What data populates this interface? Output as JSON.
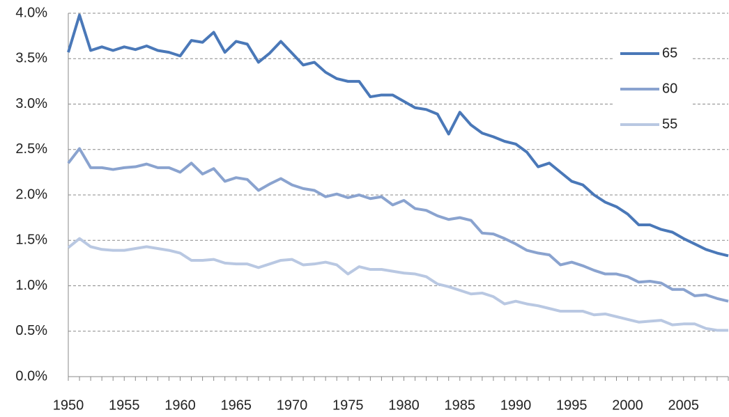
{
  "chart_data": {
    "type": "line",
    "x": [
      1950,
      1951,
      1952,
      1953,
      1954,
      1955,
      1956,
      1957,
      1958,
      1959,
      1960,
      1961,
      1962,
      1963,
      1964,
      1965,
      1966,
      1967,
      1968,
      1969,
      1970,
      1971,
      1972,
      1973,
      1974,
      1975,
      1976,
      1977,
      1978,
      1979,
      1980,
      1981,
      1982,
      1983,
      1984,
      1985,
      1986,
      1987,
      1988,
      1989,
      1990,
      1991,
      1992,
      1993,
      1994,
      1995,
      1996,
      1997,
      1998,
      1999,
      2000,
      2001,
      2002,
      2003,
      2004,
      2005,
      2006,
      2007,
      2008,
      2009
    ],
    "series": [
      {
        "name": "65",
        "color": "#4a78b8",
        "values": [
          3.57,
          3.98,
          3.59,
          3.63,
          3.59,
          3.63,
          3.6,
          3.64,
          3.59,
          3.57,
          3.53,
          3.7,
          3.68,
          3.79,
          3.57,
          3.69,
          3.66,
          3.46,
          3.56,
          3.69,
          3.56,
          3.43,
          3.46,
          3.35,
          3.28,
          3.25,
          3.25,
          3.08,
          3.1,
          3.1,
          3.03,
          2.96,
          2.94,
          2.89,
          2.67,
          2.91,
          2.77,
          2.68,
          2.64,
          2.59,
          2.56,
          2.47,
          2.31,
          2.35,
          2.25,
          2.15,
          2.11,
          2.0,
          1.92,
          1.87,
          1.79,
          1.67,
          1.67,
          1.62,
          1.59,
          1.52,
          1.46,
          1.4,
          1.36,
          1.33
        ]
      },
      {
        "name": "60",
        "color": "#8aa3cf",
        "values": [
          2.35,
          2.51,
          2.3,
          2.3,
          2.28,
          2.3,
          2.31,
          2.34,
          2.3,
          2.3,
          2.25,
          2.35,
          2.23,
          2.29,
          2.15,
          2.19,
          2.17,
          2.05,
          2.12,
          2.18,
          2.11,
          2.07,
          2.05,
          1.98,
          2.01,
          1.97,
          2.0,
          1.96,
          1.98,
          1.89,
          1.94,
          1.85,
          1.83,
          1.77,
          1.73,
          1.75,
          1.72,
          1.58,
          1.57,
          1.52,
          1.46,
          1.39,
          1.36,
          1.34,
          1.23,
          1.26,
          1.22,
          1.17,
          1.13,
          1.13,
          1.1,
          1.04,
          1.05,
          1.03,
          0.96,
          0.96,
          0.89,
          0.9,
          0.86,
          0.83
        ]
      },
      {
        "name": "55",
        "color": "#b9c8e2",
        "values": [
          1.42,
          1.52,
          1.43,
          1.4,
          1.39,
          1.39,
          1.41,
          1.43,
          1.41,
          1.39,
          1.36,
          1.28,
          1.28,
          1.29,
          1.25,
          1.24,
          1.24,
          1.2,
          1.24,
          1.28,
          1.29,
          1.23,
          1.24,
          1.26,
          1.23,
          1.13,
          1.21,
          1.18,
          1.18,
          1.16,
          1.14,
          1.13,
          1.1,
          1.02,
          0.99,
          0.95,
          0.91,
          0.92,
          0.88,
          0.8,
          0.83,
          0.8,
          0.78,
          0.75,
          0.72,
          0.72,
          0.72,
          0.68,
          0.69,
          0.66,
          0.63,
          0.6,
          0.61,
          0.62,
          0.57,
          0.58,
          0.58,
          0.53,
          0.51,
          0.51
        ]
      }
    ],
    "xlim": [
      1950,
      2009
    ],
    "xticks": [
      1950,
      1955,
      1960,
      1965,
      1970,
      1975,
      1980,
      1985,
      1990,
      1995,
      2000,
      2005
    ],
    "ylim": [
      0,
      4
    ],
    "yticks": [
      {
        "value": 0,
        "label": "0.0%"
      },
      {
        "value": 0.5,
        "label": "0.5%"
      },
      {
        "value": 1,
        "label": "1.0%"
      },
      {
        "value": 1.5,
        "label": "1.5%"
      },
      {
        "value": 2,
        "label": "2.0%"
      },
      {
        "value": 2.5,
        "label": "2.5%"
      },
      {
        "value": 3,
        "label": "3.0%"
      },
      {
        "value": 3.5,
        "label": "3.5%"
      },
      {
        "value": 4,
        "label": "4.0%"
      }
    ],
    "grid": true,
    "legend": "upper right"
  }
}
